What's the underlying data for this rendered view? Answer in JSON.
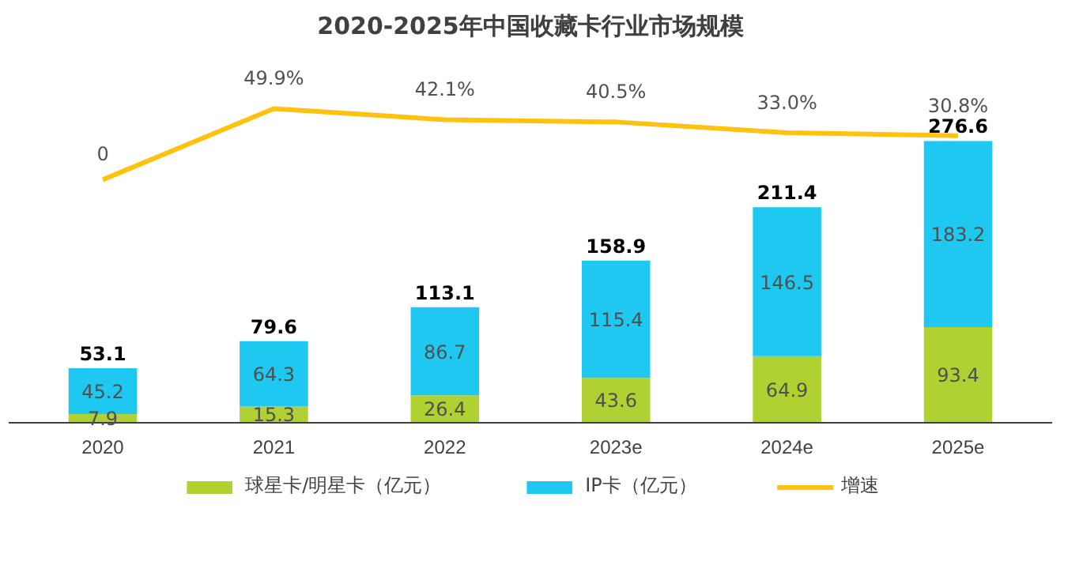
{
  "chart_data": {
    "type": "bar",
    "title": "2020-2025年中国收藏卡行业市场规模",
    "categories": [
      "2020",
      "2021",
      "2022",
      "2023e",
      "2024e",
      "2025e"
    ],
    "stacked": true,
    "data_labels": true,
    "totals": [
      "53.1",
      "79.6",
      "113.1",
      "158.9",
      "211.4",
      "276.6"
    ],
    "tick_labels": "x",
    "grid": false,
    "legend": "bottom",
    "series": [
      {
        "name": "球星卡/明星卡（亿元）",
        "color": "#afd131",
        "values": [
          7.9,
          15.3,
          26.4,
          43.6,
          64.9,
          93.4
        ]
      },
      {
        "name": "IP卡（亿元）",
        "color": "#1fc8f1",
        "values": [
          45.2,
          64.3,
          86.7,
          115.4,
          146.5,
          183.2
        ]
      },
      {
        "name": "增速",
        "type": "line",
        "axis": "y2",
        "color": "#ffc20e",
        "line_style": "solid",
        "values": [
          0,
          49.9,
          42.1,
          40.5,
          33.0,
          30.8
        ],
        "value_labels": [
          "0",
          "49.9%",
          "42.1%",
          "40.5%",
          "33.0%",
          "30.8%"
        ]
      }
    ]
  }
}
